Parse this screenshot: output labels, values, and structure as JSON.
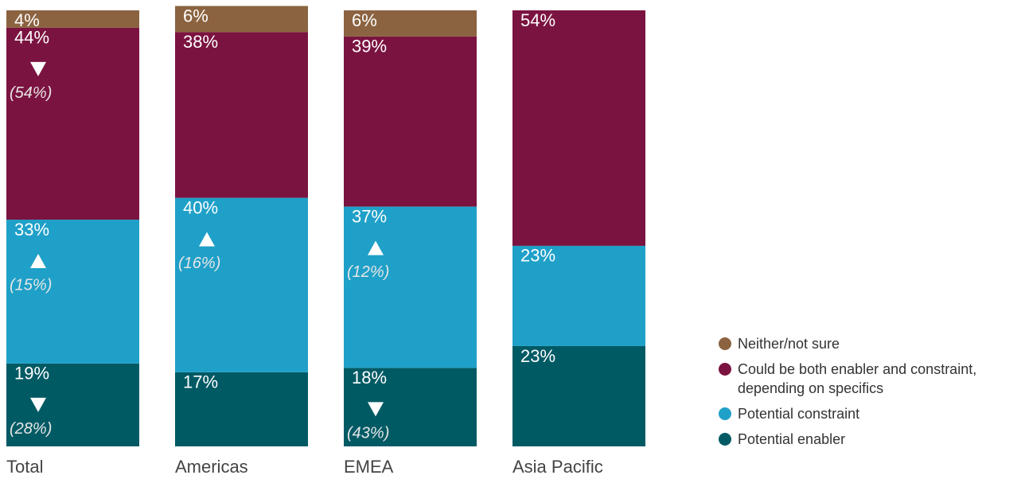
{
  "chart_data": {
    "type": "stacked-bar",
    "categories": [
      "Total",
      "Americas",
      "EMEA",
      "Asia Pacific"
    ],
    "ylim": [
      0,
      100
    ],
    "series": [
      {
        "name": "Potential enabler",
        "color": "#005a64",
        "values": [
          19,
          17,
          18,
          23
        ],
        "value_labels": [
          "19%",
          "17%",
          "18%",
          "23%"
        ],
        "changes": [
          {
            "direction": "down",
            "value": 28,
            "label": "(28%)"
          },
          null,
          {
            "direction": "down",
            "value": 43,
            "label": "(43%)"
          },
          null
        ]
      },
      {
        "name": "Potential constraint",
        "color": "#1fa0c8",
        "values": [
          33,
          40,
          37,
          23
        ],
        "value_labels": [
          "33%",
          "40%",
          "37%",
          "23%"
        ],
        "changes": [
          {
            "direction": "up",
            "value": 15,
            "label": "(15%)"
          },
          {
            "direction": "up",
            "value": 16,
            "label": "(16%)"
          },
          {
            "direction": "up",
            "value": 12,
            "label": "(12%)"
          },
          null
        ]
      },
      {
        "name": "Could be both enabler and constraint, depending on specifics",
        "color": "#7b1340",
        "values": [
          44,
          38,
          39,
          54
        ],
        "value_labels": [
          "44%",
          "38%",
          "39%",
          "54%"
        ],
        "changes": [
          {
            "direction": "down",
            "value": 54,
            "label": "(54%)"
          },
          null,
          null,
          null
        ]
      },
      {
        "name": "Neither/not sure",
        "color": "#8b6340",
        "values": [
          4,
          6,
          6,
          null
        ],
        "value_labels": [
          "4%",
          "6%",
          "6%",
          null
        ],
        "changes": [
          null,
          null,
          null,
          null
        ]
      }
    ]
  }
}
